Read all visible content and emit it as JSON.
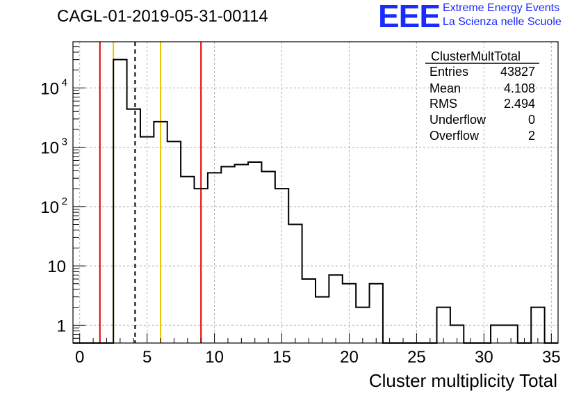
{
  "title": "CAGL-01-2019-05-31-00114",
  "logo": {
    "mark": "EEE",
    "line1": "Extreme Energy Events",
    "line2": "La Scienza nelle Scuole"
  },
  "stats": {
    "title": "ClusterMultTotal",
    "rows": [
      {
        "label": "Entries",
        "value": "43827"
      },
      {
        "label": "Mean",
        "value": "4.108"
      },
      {
        "label": "RMS",
        "value": "2.494"
      },
      {
        "label": "Underflow",
        "value": "0"
      },
      {
        "label": "Overflow",
        "value": "2"
      }
    ]
  },
  "colors": {
    "histogram": "#000000",
    "red_lines": "#e00000",
    "yellow_lines": "#f0c000",
    "grid": "#b0b0b0"
  },
  "chart_data": {
    "type": "histogram",
    "xlabel": "Cluster multiplicity Total",
    "ylabel": "",
    "xlim": [
      -0.5,
      35.5
    ],
    "ylim": [
      0.5,
      60000
    ],
    "yscale": "log",
    "grid": true,
    "x_ticks": [
      "0",
      "5",
      "10",
      "15",
      "20",
      "25",
      "30",
      "35"
    ],
    "y_ticks": [
      {
        "value": 1,
        "label": "1"
      },
      {
        "value": 10,
        "label": "10"
      },
      {
        "value": 100,
        "label": "10",
        "exp": "2"
      },
      {
        "value": 1000,
        "label": "10",
        "exp": "3"
      },
      {
        "value": 10000,
        "label": "10",
        "exp": "4"
      }
    ],
    "bin_width": 1,
    "bins_x": [
      0,
      1,
      2,
      3,
      4,
      5,
      6,
      7,
      8,
      9,
      10,
      11,
      12,
      13,
      14,
      15,
      16,
      17,
      18,
      19,
      20,
      21,
      22,
      23,
      24,
      25,
      26,
      27,
      28,
      29,
      30,
      31,
      32,
      33,
      34,
      35
    ],
    "counts": [
      0,
      0,
      0,
      30000,
      4400,
      1500,
      2700,
      1250,
      320,
      200,
      370,
      470,
      510,
      560,
      390,
      200,
      50,
      6,
      3,
      7,
      5,
      2,
      5,
      0,
      0,
      0,
      0,
      2,
      1,
      0,
      0,
      1,
      1,
      0,
      2,
      0
    ],
    "vertical_lines": [
      {
        "x": 1.5,
        "color": "red",
        "style": "solid"
      },
      {
        "x": 2.5,
        "color": "yellow",
        "style": "solid"
      },
      {
        "x": 4.108,
        "color": "black",
        "style": "dashed"
      },
      {
        "x": 6.0,
        "color": "yellow",
        "style": "solid"
      },
      {
        "x": 9.0,
        "color": "red",
        "style": "solid"
      }
    ]
  }
}
